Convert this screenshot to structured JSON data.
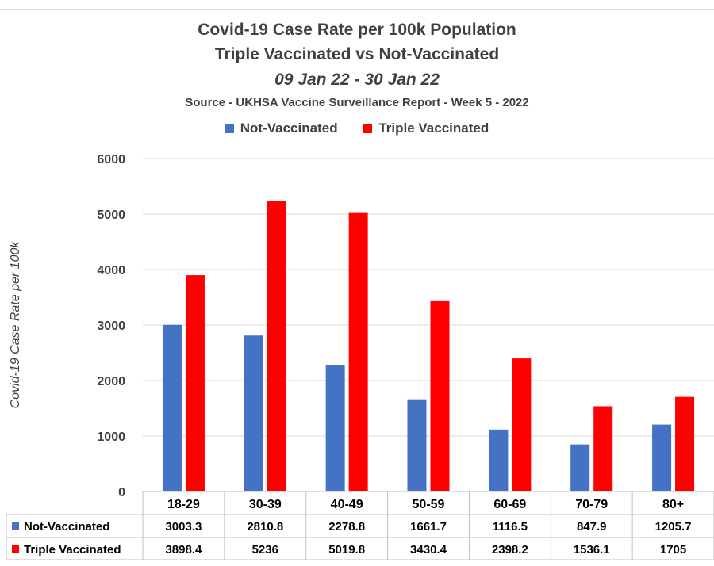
{
  "chart_data": {
    "type": "bar",
    "title": "Covid-19 Case Rate per 100k Population",
    "title_line2": "Triple Vaccinated vs Not-Vaccinated",
    "subtitle": "09 Jan 22 - 30 Jan 22",
    "source": "Source - UKHSA Vaccine Surveillance Report - Week 5 - 2022",
    "xlabel": "",
    "ylabel": "Covid-19 Case Rate per 100k",
    "ylim": [
      0,
      6000
    ],
    "yticks": [
      0,
      1000,
      2000,
      3000,
      4000,
      5000,
      6000
    ],
    "grid": true,
    "legend_position": "top",
    "categories": [
      "18-29",
      "30-39",
      "40-49",
      "50-59",
      "60-69",
      "70-79",
      "80+"
    ],
    "series": [
      {
        "name": "Not-Vaccinated",
        "color": "#4472c4",
        "values": [
          3003.3,
          2810.8,
          2278.8,
          1661.7,
          1116.5,
          847.9,
          1205.7
        ],
        "labels": [
          "3003.3",
          "2810.8",
          "2278.8",
          "1661.7",
          "1116.5",
          "847.9",
          "1205.7"
        ]
      },
      {
        "name": "Triple Vaccinated",
        "color": "#ff0000",
        "values": [
          3898.4,
          5236,
          5019.8,
          3430.4,
          2398.2,
          1536.1,
          1705
        ],
        "labels": [
          "3898.4",
          "5236",
          "5019.8",
          "3430.4",
          "2398.2",
          "1536.1",
          "1705"
        ]
      }
    ],
    "data_table": true
  }
}
